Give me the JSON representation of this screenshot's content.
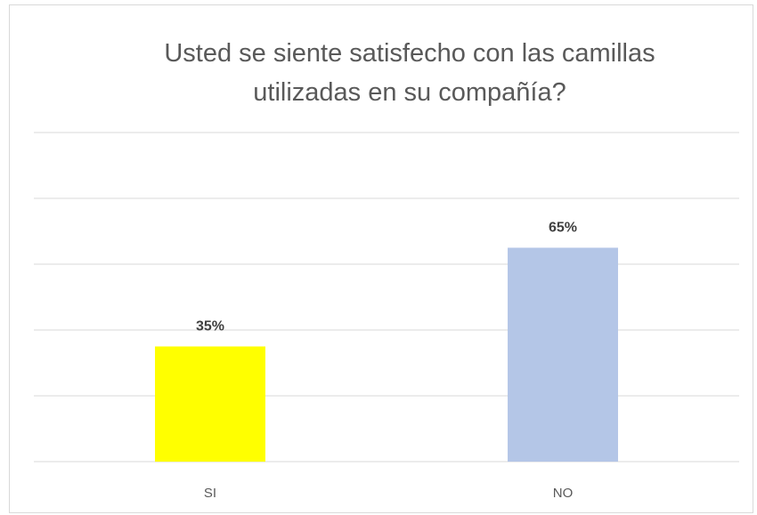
{
  "chart_data": {
    "type": "bar",
    "title": "Usted se siente satisfecho con las camillas utilizadas en su compañía?",
    "categories": [
      "SI",
      "NO"
    ],
    "values": [
      35,
      65
    ],
    "value_labels": [
      "35%",
      "65%"
    ],
    "colors": [
      "#ffff00",
      "#b4c6e7"
    ],
    "ylim": [
      0,
      100
    ],
    "yticks": [
      0,
      20,
      40,
      60,
      80,
      100
    ],
    "grid": true
  }
}
